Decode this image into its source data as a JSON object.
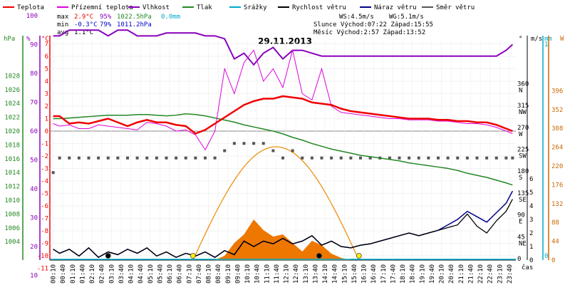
{
  "chart_data": {
    "type": "line",
    "title": "29.11.2013",
    "legend": [
      {
        "label": "Teplota",
        "color": "#ee0000"
      },
      {
        "label": "Přízemní teplota",
        "color": "#dd00dd"
      },
      {
        "label": "Vlhkost",
        "color": "#8800bb"
      },
      {
        "label": "Tlak",
        "color": "#228822"
      },
      {
        "label": "Srážky",
        "color": "#00aacc"
      },
      {
        "label": "Rychlost větru",
        "color": "#000000"
      },
      {
        "label": "Náraz větru",
        "color": "#000088"
      },
      {
        "label": "Směr větru",
        "color": "#555555"
      }
    ],
    "stats": {
      "max_label": "max",
      "max_temp": "2.9°C",
      "max_hum": "95%",
      "max_press": "1022.5hPa",
      "rain": "0.0mm",
      "min_label": "min",
      "min_temp": "-0.3°C",
      "min_hum": "79%",
      "min_press": "1011.2hPa",
      "avg_label": "avg",
      "avg_temp": "1.1°C",
      "ws": "WS:4.5m/s",
      "wg": "WG:5.1m/s",
      "sun": "Slunce Východ:07:22  Západ:15:55",
      "moon": "Měsíc  Východ:2:57   Západ:13:52"
    },
    "axis_units": {
      "hpa": "hPa",
      "percent": "%",
      "celsius": "°C",
      "degree": "°",
      "ms": "m/s",
      "mm": "mm",
      "w": "W",
      "time": "čas"
    },
    "hpa_ticks": [
      "1028",
      "1026",
      "1024",
      "1022",
      "1020",
      "1018",
      "1016",
      "1014",
      "1012",
      "1010",
      "1008",
      "1006",
      "1004"
    ],
    "percent_ticks": [
      "100",
      "90",
      "80",
      "70",
      "60",
      "50",
      "40",
      "30",
      "20",
      "10"
    ],
    "celsius_ticks": [
      "7",
      "6",
      "5",
      "4",
      "3",
      "2",
      "1",
      "0",
      "-1",
      "-2",
      "-3",
      "-4",
      "-5",
      "-6",
      "-7",
      "-8",
      "-9",
      "-10",
      "-11"
    ],
    "degree_ticks": [
      {
        "v": "360",
        "d": "N"
      },
      {
        "v": "315",
        "d": "NW"
      },
      {
        "v": "270",
        "d": "W"
      },
      {
        "v": "225",
        "d": "SW"
      },
      {
        "v": "180",
        "d": "S"
      },
      {
        "v": "135",
        "d": "SE"
      },
      {
        "v": "90",
        "d": "E"
      },
      {
        "v": "45",
        "d": "NE"
      },
      {
        "v": "0",
        "d": ""
      }
    ],
    "ms_ticks": [
      "6",
      "5",
      "4",
      "3",
      "2",
      "1",
      "0"
    ],
    "mm_ticks": [
      "1",
      "0"
    ],
    "w_ticks": [
      "396",
      "352",
      "308",
      "264",
      "220",
      "176",
      "132",
      "88",
      "44",
      "0"
    ],
    "time_labels": [
      "00:10",
      "00:40",
      "01:10",
      "01:40",
      "02:10",
      "02:40",
      "03:10",
      "03:40",
      "04:10",
      "04:40",
      "05:10",
      "05:40",
      "06:10",
      "06:40",
      "07:10",
      "07:40",
      "08:10",
      "08:40",
      "09:10",
      "09:40",
      "10:10",
      "10:40",
      "11:10",
      "11:40",
      "12:10",
      "12:40",
      "13:10",
      "13:40",
      "14:10",
      "14:40",
      "15:10",
      "15:40",
      "16:10",
      "16:40",
      "17:10",
      "17:40",
      "18:10",
      "18:40",
      "19:10",
      "19:40",
      "20:10",
      "20:40",
      "21:10",
      "21:40",
      "22:10",
      "22:40",
      "23:10",
      "23:40"
    ],
    "x_hours": [
      0.17,
      0.5,
      1,
      1.5,
      2,
      2.5,
      3,
      3.5,
      4,
      4.5,
      5,
      5.5,
      6,
      6.5,
      7,
      7.5,
      8,
      8.5,
      9,
      9.5,
      10,
      10.5,
      11,
      11.5,
      12,
      12.5,
      13,
      13.5,
      14,
      14.5,
      15,
      15.5,
      16,
      16.5,
      17,
      17.5,
      18,
      18.5,
      19,
      19.5,
      20,
      20.5,
      21,
      21.5,
      22,
      22.5,
      23,
      23.5,
      23.83
    ],
    "temperature_c": [
      1.2,
      1.2,
      0.6,
      0.7,
      0.6,
      0.8,
      1.0,
      0.7,
      0.4,
      0.7,
      0.9,
      0.7,
      0.7,
      0.5,
      0.4,
      -0.2,
      0.1,
      0.6,
      1.1,
      1.6,
      2.1,
      2.4,
      2.6,
      2.6,
      2.8,
      2.7,
      2.6,
      2.3,
      2.2,
      2.1,
      1.8,
      1.6,
      1.5,
      1.4,
      1.3,
      1.2,
      1.1,
      1.0,
      1.0,
      1.0,
      0.9,
      0.9,
      0.8,
      0.8,
      0.7,
      0.7,
      0.5,
      0.2,
      0.0
    ],
    "ground_temp_c": [
      0.6,
      0.4,
      0.5,
      0.2,
      0.2,
      0.5,
      0.4,
      0.3,
      0.2,
      0.1,
      0.7,
      0.6,
      0.4,
      0.0,
      0.1,
      -0.3,
      -1.5,
      0.0,
      5.0,
      3.0,
      5.5,
      6.5,
      4.0,
      5.0,
      3.5,
      6.5,
      3.0,
      2.5,
      5.0,
      2.0,
      1.5,
      1.4,
      1.3,
      1.2,
      1.1,
      1.0,
      1.0,
      0.9,
      0.9,
      0.9,
      0.8,
      0.8,
      0.7,
      0.6,
      0.6,
      0.5,
      0.3,
      0.0,
      -0.2
    ],
    "humidity_pct": [
      93,
      93,
      95,
      95,
      95,
      95,
      93,
      95,
      95,
      93,
      93,
      93,
      94,
      94,
      94,
      94,
      93,
      93,
      92,
      85,
      87,
      83,
      87,
      89,
      85,
      88,
      88,
      87,
      86,
      86,
      86,
      86,
      86,
      86,
      86,
      86,
      86,
      86,
      86,
      86,
      86,
      86,
      86,
      86,
      86,
      86,
      86,
      88,
      90
    ],
    "pressure_hpa": [
      1021.8,
      1021.8,
      1021.9,
      1022.0,
      1022.1,
      1022.2,
      1022.3,
      1022.3,
      1022.3,
      1022.4,
      1022.4,
      1022.3,
      1022.2,
      1022.3,
      1022.5,
      1022.4,
      1022.2,
      1021.9,
      1021.6,
      1021.3,
      1020.9,
      1020.6,
      1020.3,
      1020.0,
      1019.6,
      1019.1,
      1018.7,
      1018.2,
      1017.8,
      1017.4,
      1017.1,
      1016.8,
      1016.5,
      1016.3,
      1016.1,
      1015.9,
      1015.7,
      1015.4,
      1015.2,
      1015.0,
      1014.8,
      1014.6,
      1014.3,
      1013.9,
      1013.6,
      1013.3,
      1012.9,
      1012.5,
      1012.2
    ],
    "wind_speed_ms": [
      0.8,
      0.5,
      0.8,
      0.3,
      0.9,
      0.2,
      0.6,
      0.4,
      0.8,
      0.5,
      0.9,
      0.3,
      0.6,
      0.2,
      0.5,
      0.3,
      0.6,
      0.2,
      0.7,
      0.4,
      1.4,
      1.0,
      1.4,
      1.2,
      1.6,
      1.2,
      1.4,
      1.8,
      1.1,
      1.4,
      1.0,
      0.9,
      1.1,
      1.2,
      1.4,
      1.6,
      1.8,
      2.0,
      1.8,
      2.0,
      2.2,
      2.4,
      2.6,
      3.4,
      2.5,
      2.0,
      2.9,
      3.6,
      4.5
    ],
    "wind_gust_ms": [
      0.8,
      0.5,
      0.8,
      0.3,
      0.9,
      0.2,
      0.6,
      0.4,
      0.8,
      0.5,
      0.9,
      0.3,
      0.6,
      0.2,
      0.5,
      0.3,
      0.6,
      0.2,
      0.7,
      0.4,
      1.4,
      1.0,
      1.4,
      1.2,
      1.6,
      1.2,
      1.4,
      1.8,
      1.1,
      1.4,
      1.0,
      0.9,
      1.1,
      1.2,
      1.4,
      1.6,
      1.8,
      2.0,
      1.8,
      2.0,
      2.2,
      2.6,
      3.0,
      3.6,
      3.2,
      2.8,
      3.5,
      4.2,
      5.1
    ],
    "wind_dir_deg": [
      180,
      210,
      210,
      210,
      210,
      210,
      210,
      210,
      210,
      210,
      210,
      210,
      210,
      210,
      210,
      210,
      210,
      210,
      225,
      240,
      240,
      240,
      240,
      225,
      210,
      225,
      210,
      210,
      210,
      210,
      210,
      210,
      210,
      210,
      210,
      210,
      210,
      210,
      210,
      210,
      210,
      210,
      210,
      210,
      210,
      210,
      210,
      210,
      210
    ],
    "solar_w": [
      0,
      0,
      0,
      0,
      0,
      0,
      0,
      0,
      0,
      0,
      0,
      0,
      0,
      0,
      0,
      0,
      0,
      0,
      10,
      40,
      60,
      95,
      70,
      55,
      60,
      40,
      20,
      45,
      35,
      15,
      5,
      0,
      0,
      0,
      0,
      0,
      0,
      0,
      0,
      0,
      0,
      0,
      0,
      0,
      0,
      0,
      0,
      0,
      0
    ]
  }
}
